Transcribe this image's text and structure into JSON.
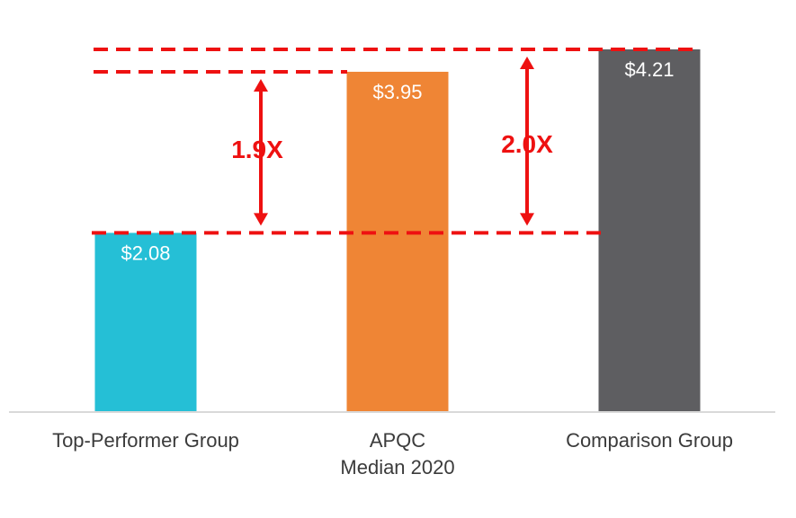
{
  "chart_data": {
    "type": "bar",
    "categories": [
      "Top-Performer Group",
      "APQC\nMedian 2020",
      "Comparison Group"
    ],
    "values": [
      2.08,
      3.95,
      4.21
    ],
    "value_labels": [
      "$2.08",
      "$3.95",
      "$4.21"
    ],
    "colors": [
      "#25bfd6",
      "#ef8535",
      "#5e5e61"
    ],
    "ylim": [
      0,
      4.21
    ],
    "grid": false,
    "annotations": [
      {
        "label": "1.9X",
        "from_value": 2.08,
        "to_value": 3.95
      },
      {
        "label": "2.0X",
        "from_value": 2.08,
        "to_value": 4.21
      }
    ],
    "annotation_color": "#ee1111"
  }
}
